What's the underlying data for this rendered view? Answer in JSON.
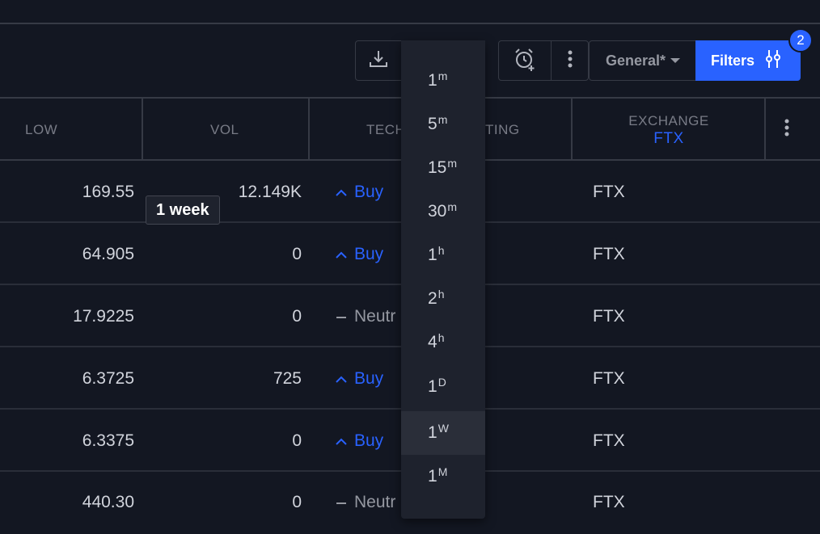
{
  "toolbar": {
    "general_label": "General*",
    "filters_label": "Filters",
    "filters_badge": "2"
  },
  "table": {
    "headers": {
      "low": "LOW",
      "vol": "VOL",
      "tech": "TECH",
      "rating_tail": "TING",
      "exchange": "EXCHANGE",
      "exchange_filter": "FTX"
    },
    "rows": [
      {
        "low": "169.55",
        "vol": "12.149K",
        "rating": "Buy",
        "exchange": "FTX"
      },
      {
        "low": "64.905",
        "vol": "0",
        "rating": "Buy",
        "exchange": "FTX"
      },
      {
        "low": "17.9225",
        "vol": "0",
        "rating": "Neutr",
        "exchange": "FTX"
      },
      {
        "low": "6.3725",
        "vol": "725",
        "rating": "Buy",
        "exchange": "FTX"
      },
      {
        "low": "6.3375",
        "vol": "0",
        "rating": "Buy",
        "exchange": "FTX"
      },
      {
        "low": "440.30",
        "vol": "0",
        "rating": "Neutr",
        "exchange": "FTX"
      }
    ]
  },
  "tooltip": "1 week",
  "dropdown": {
    "items": [
      {
        "num": "1",
        "unit": "m"
      },
      {
        "num": "5",
        "unit": "m"
      },
      {
        "num": "15",
        "unit": "m"
      },
      {
        "num": "30",
        "unit": "m"
      },
      {
        "num": "1",
        "unit": "h"
      },
      {
        "num": "2",
        "unit": "h"
      },
      {
        "num": "4",
        "unit": "h"
      },
      {
        "num": "1",
        "unit": "D"
      },
      {
        "num": "1",
        "unit": "W"
      },
      {
        "num": "1",
        "unit": "M"
      }
    ],
    "selected_index": 8
  },
  "colors": {
    "accent": "#2962ff",
    "background": "#131722",
    "neutral": "#9598a1"
  }
}
